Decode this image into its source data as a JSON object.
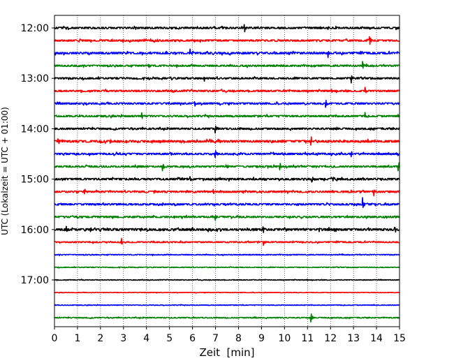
{
  "chart_data": {
    "type": "line",
    "xlabel": "Zeit  [min]",
    "ylabel": "UTC (Lokalzeit = UTC + 01:00)",
    "xlim": [
      0,
      15
    ],
    "x_ticks": [
      "0",
      "1",
      "2",
      "3",
      "4",
      "5",
      "6",
      "7",
      "8",
      "9",
      "10",
      "11",
      "12",
      "13",
      "14",
      "15"
    ],
    "y_ticks": [
      "12:00",
      "13:00",
      "14:00",
      "15:00",
      "16:00",
      "17:00"
    ],
    "grid": "vertical dotted",
    "colors": [
      "#000000",
      "#ff0000",
      "#0000ff",
      "#008000"
    ],
    "traces": [
      {
        "start": "12:00",
        "color": "#000000",
        "noise": 0.8,
        "events": [
          {
            "t": 8.25,
            "amp": 9
          }
        ]
      },
      {
        "start": "12:15",
        "color": "#ff0000",
        "noise": 0.8,
        "events": [
          {
            "t": 3.9,
            "amp": 4
          },
          {
            "t": 13.7,
            "amp": 9
          }
        ]
      },
      {
        "start": "12:30",
        "color": "#0000ff",
        "noise": 0.9,
        "events": [
          {
            "t": 5.9,
            "amp": 6
          },
          {
            "t": 11.9,
            "amp": 9
          }
        ]
      },
      {
        "start": "12:45",
        "color": "#008000",
        "noise": 0.8,
        "events": [
          {
            "t": 4.1,
            "amp": 5
          },
          {
            "t": 13.4,
            "amp": 7
          }
        ]
      },
      {
        "start": "13:00",
        "color": "#000000",
        "noise": 0.8,
        "events": [
          {
            "t": 6.5,
            "amp": 5
          },
          {
            "t": 12.9,
            "amp": 8
          }
        ]
      },
      {
        "start": "13:15",
        "color": "#ff0000",
        "noise": 0.8,
        "events": [
          {
            "t": 13.5,
            "amp": 7
          }
        ]
      },
      {
        "start": "13:30",
        "color": "#0000ff",
        "noise": 0.8,
        "events": [
          {
            "t": 6.1,
            "amp": 4
          },
          {
            "t": 11.8,
            "amp": 7
          }
        ]
      },
      {
        "start": "13:45",
        "color": "#008000",
        "noise": 0.8,
        "events": [
          {
            "t": 3.8,
            "amp": 4
          },
          {
            "t": 13.5,
            "amp": 7
          }
        ]
      },
      {
        "start": "14:00",
        "color": "#000000",
        "noise": 0.8,
        "events": [
          {
            "t": 7.0,
            "amp": 6
          }
        ]
      },
      {
        "start": "14:15",
        "color": "#ff0000",
        "noise": 1.0,
        "events": [
          {
            "t": 0.15,
            "amp": 7
          },
          {
            "t": 11.15,
            "amp": 8
          },
          {
            "t": 5.6,
            "amp": 4
          }
        ]
      },
      {
        "start": "14:30",
        "color": "#0000ff",
        "noise": 0.8,
        "events": [
          {
            "t": 7.0,
            "amp": 7
          },
          {
            "t": 12.9,
            "amp": 4
          }
        ]
      },
      {
        "start": "14:45",
        "color": "#008000",
        "noise": 0.8,
        "events": [
          {
            "t": 4.7,
            "amp": 8
          },
          {
            "t": 9.8,
            "amp": 6
          },
          {
            "t": 14.95,
            "amp": 9
          }
        ]
      },
      {
        "start": "15:00",
        "color": "#000000",
        "noise": 0.9,
        "events": [
          {
            "t": 5.9,
            "amp": 5
          },
          {
            "t": 11.2,
            "amp": 7
          }
        ]
      },
      {
        "start": "15:15",
        "color": "#ff0000",
        "noise": 0.8,
        "events": [
          {
            "t": 1.3,
            "amp": 5
          },
          {
            "t": 6.9,
            "amp": 6
          },
          {
            "t": 13.9,
            "amp": 5
          }
        ]
      },
      {
        "start": "15:30",
        "color": "#0000ff",
        "noise": 0.8,
        "events": [
          {
            "t": 13.4,
            "amp": 9
          }
        ]
      },
      {
        "start": "15:45",
        "color": "#008000",
        "noise": 0.8,
        "events": [
          {
            "t": 7.0,
            "amp": 4
          }
        ]
      },
      {
        "start": "16:00",
        "color": "#000000",
        "noise": 1.0,
        "events": [
          {
            "t": 0.5,
            "amp": 5
          },
          {
            "t": 9.05,
            "amp": 9
          },
          {
            "t": 14.8,
            "amp": 5
          }
        ]
      },
      {
        "start": "16:15",
        "color": "#ff0000",
        "noise": 0.6,
        "events": [
          {
            "t": 2.9,
            "amp": 7
          },
          {
            "t": 9.1,
            "amp": 4
          }
        ]
      },
      {
        "start": "16:30",
        "color": "#0000ff",
        "noise": 0.4,
        "events": []
      },
      {
        "start": "16:45",
        "color": "#008000",
        "noise": 0.35,
        "events": []
      },
      {
        "start": "17:00",
        "color": "#000000",
        "noise": 0.3,
        "events": []
      },
      {
        "start": "17:15",
        "color": "#ff0000",
        "noise": 0.25,
        "events": []
      },
      {
        "start": "17:30",
        "color": "#0000ff",
        "noise": 0.3,
        "events": []
      },
      {
        "start": "17:45",
        "color": "#008000",
        "noise": 0.45,
        "events": [
          {
            "t": 11.15,
            "amp": 7
          },
          {
            "t": 8.7,
            "amp": 3
          }
        ]
      }
    ]
  }
}
